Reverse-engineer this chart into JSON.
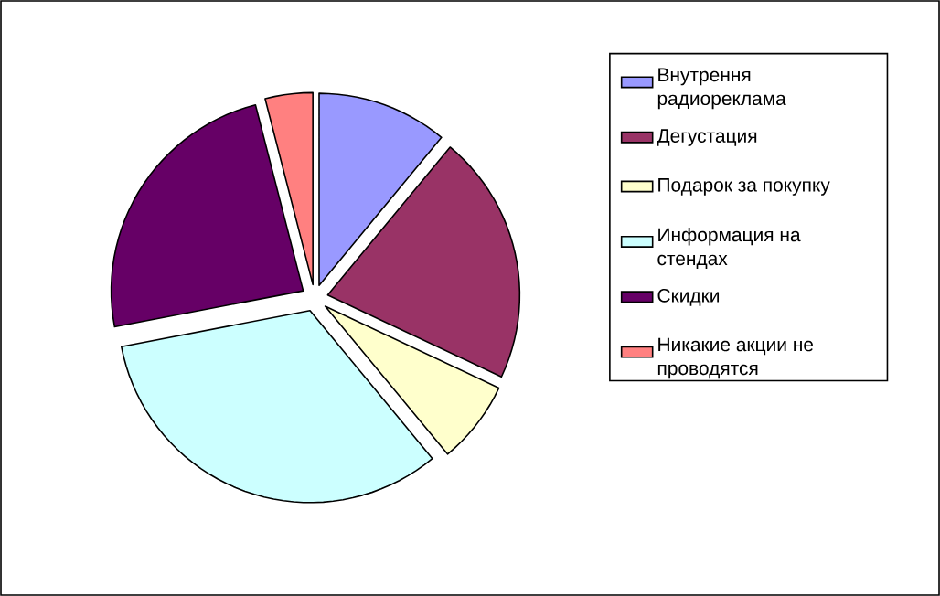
{
  "chart_data": {
    "type": "pie",
    "categories": [
      "Внутрення радиореклама",
      "Дегустация",
      "Подарок за покупку",
      "Информация на стендах",
      "Скидки",
      "Никакие акции не проводятся"
    ],
    "values": [
      11,
      21,
      7,
      33,
      24,
      4
    ],
    "colors": [
      "#9999ff",
      "#993366",
      "#ffffcc",
      "#ccffff",
      "#660066",
      "#ff8080"
    ],
    "legend": "right"
  }
}
